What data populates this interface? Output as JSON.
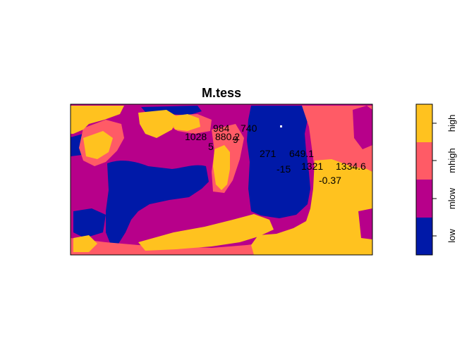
{
  "title": "M.tess",
  "colors": {
    "low": "#0019A8",
    "mlow": "#B7008A",
    "mhigh": "#FF5B66",
    "high": "#FFC21F",
    "frame": "#000000",
    "dot": "#FFFFFF"
  },
  "legend": {
    "items": [
      {
        "label": "low",
        "color_key": "low"
      },
      {
        "label": "mlow",
        "color_key": "mlow"
      },
      {
        "label": "mhigh",
        "color_key": "mhigh"
      },
      {
        "label": "high",
        "color_key": "high"
      }
    ]
  },
  "point_labels": [
    "1028",
    "984",
    "880.2",
    "740",
    "5",
    "9",
    "271",
    "649.1",
    "-15",
    "1321",
    "1334.6",
    "-0.37"
  ]
}
